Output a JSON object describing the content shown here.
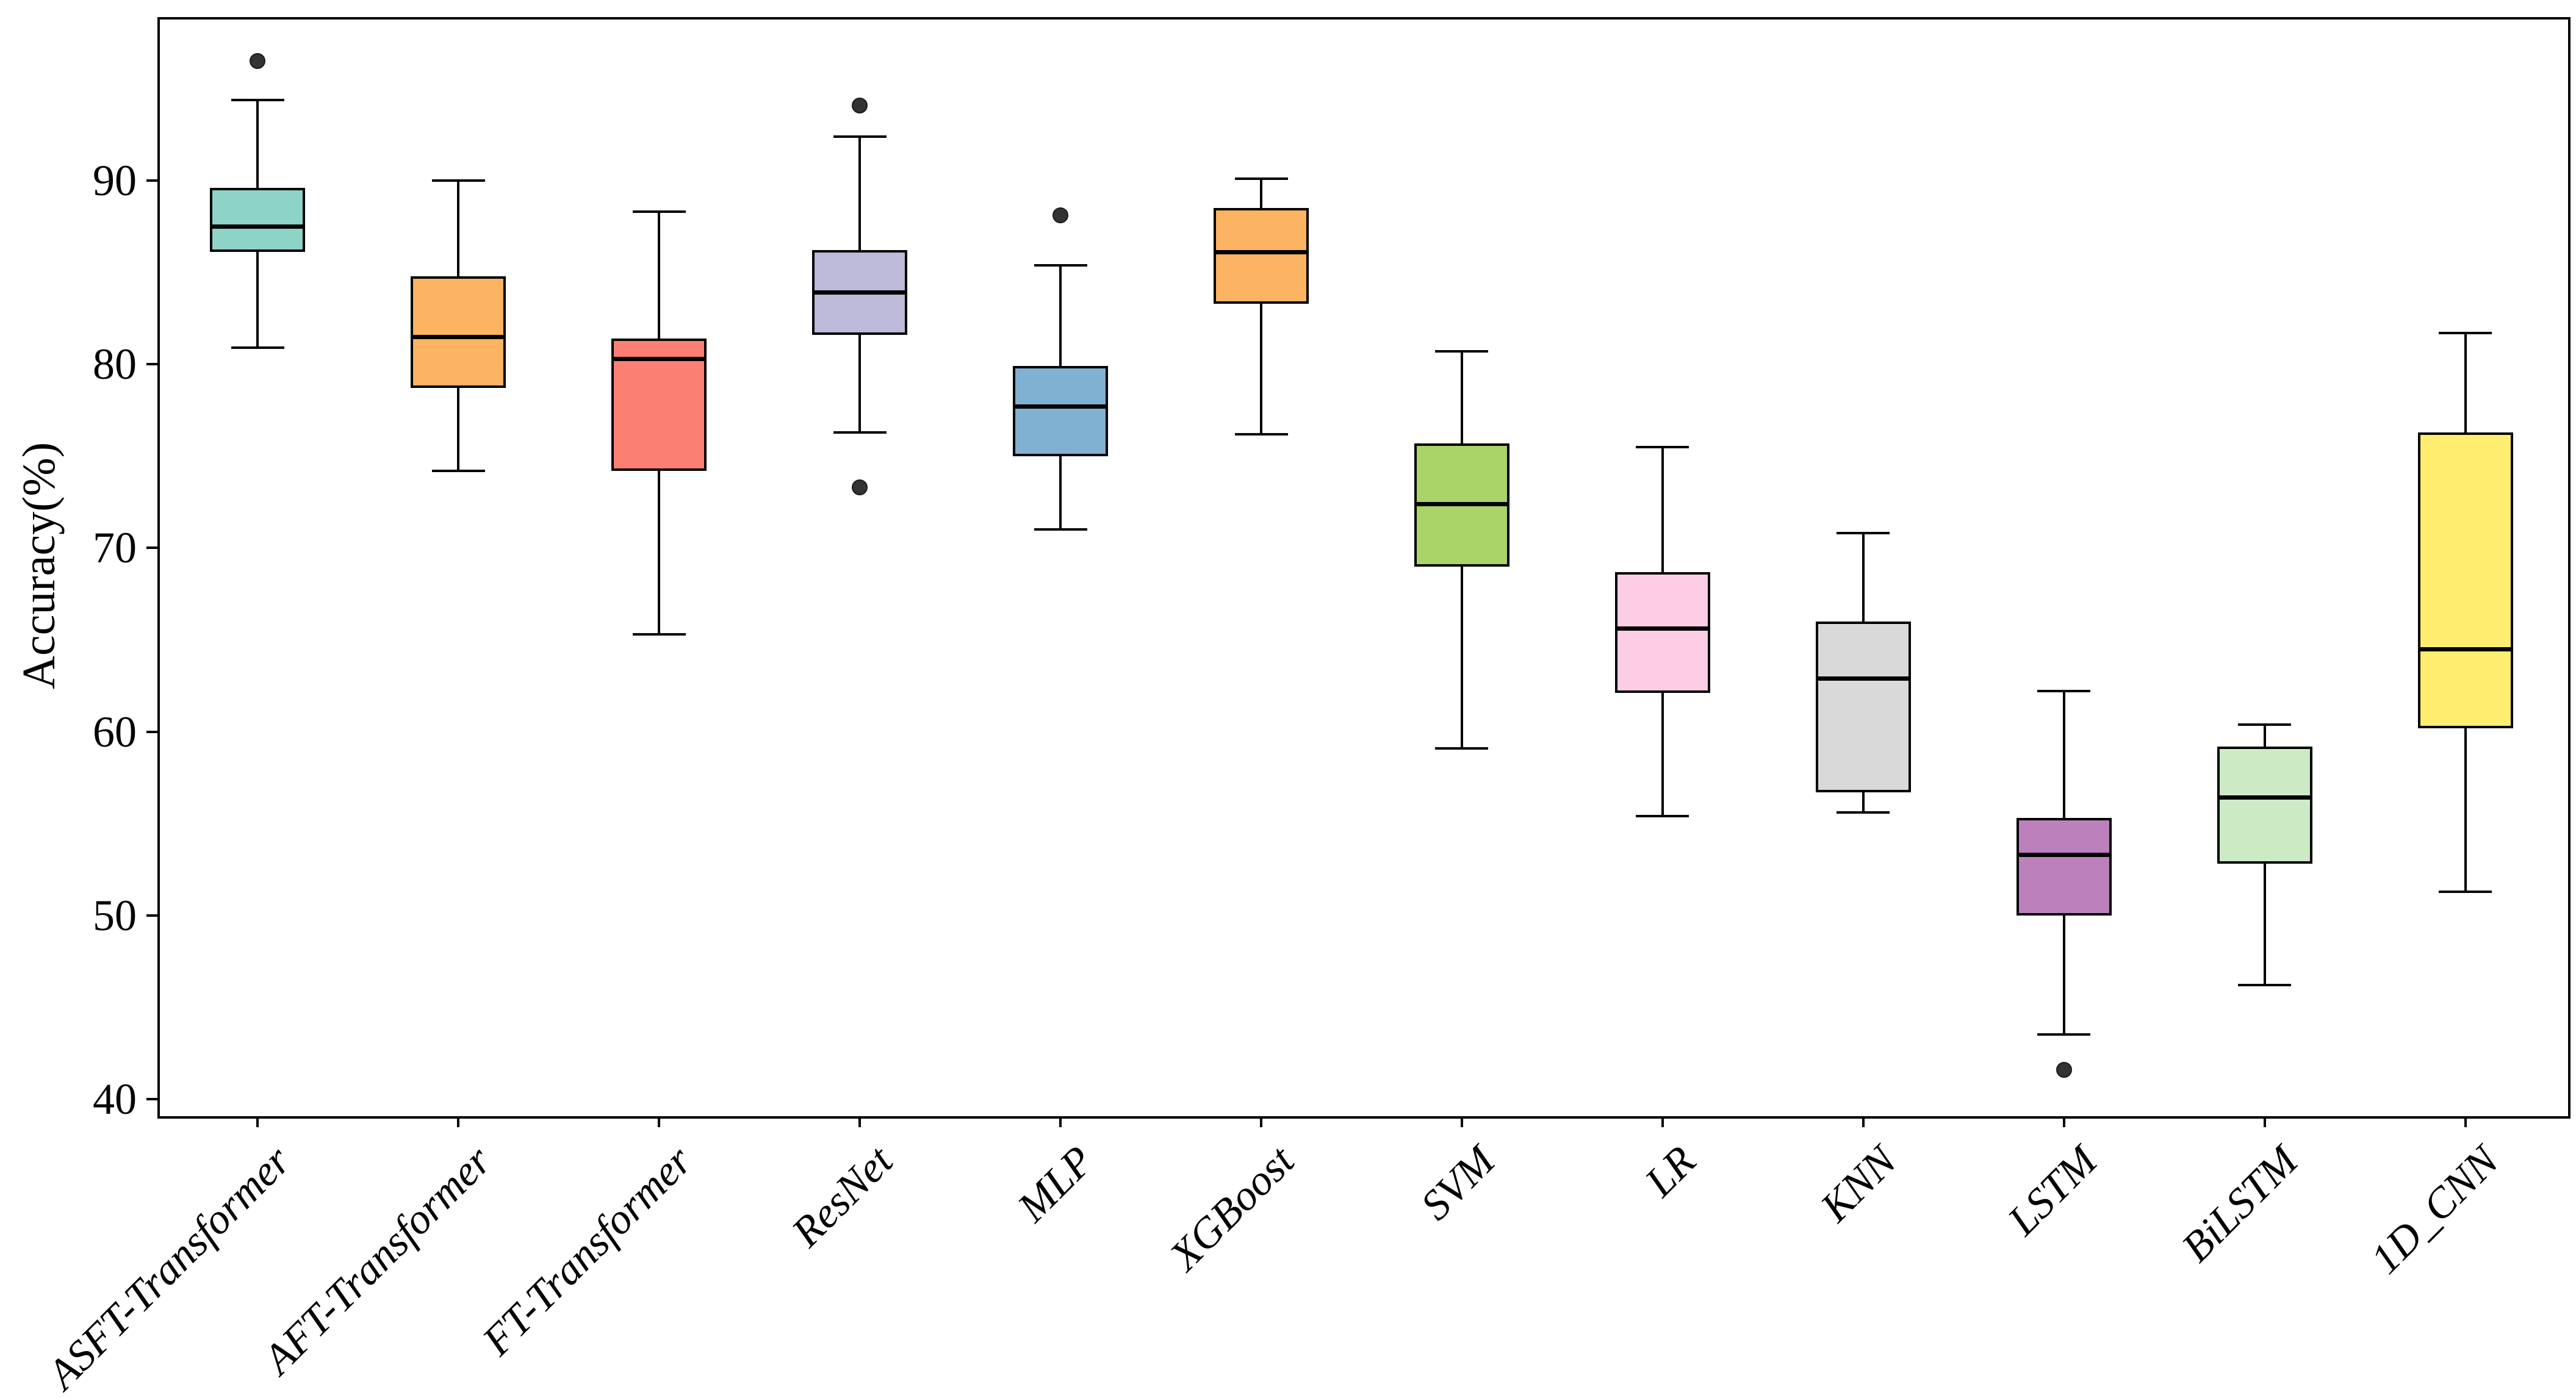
{
  "chart_data": {
    "type": "box",
    "title": "",
    "xlabel": "",
    "ylabel": "Accuracy(%)",
    "yticks": [
      40,
      50,
      60,
      70,
      80,
      90
    ],
    "ylim": [
      39.2,
      98.9
    ],
    "grid": false,
    "legend": null,
    "outlier_color": "#333333",
    "categories": [
      "ASFT-Transformer",
      "AFT-Transformer",
      "FT-Transformer",
      "ResNet",
      "MLP",
      "XGBoost",
      "SVM",
      "LR",
      "KNN",
      "LSTM",
      "BiLSTM",
      "1D_CNN"
    ],
    "series": [
      {
        "name": "ASFT-Transformer",
        "color": "#8dd3c7",
        "whislo": 80.9,
        "q1": 86.1,
        "med": 87.5,
        "q3": 89.6,
        "whishi": 94.4,
        "fliers": [
          96.5
        ]
      },
      {
        "name": "AFT-Transformer",
        "color": "#fdb462",
        "whislo": 74.2,
        "q1": 78.7,
        "med": 81.5,
        "q3": 84.8,
        "whishi": 90.0,
        "fliers": []
      },
      {
        "name": "FT-Transformer",
        "color": "#fb8072",
        "whislo": 65.3,
        "q1": 74.2,
        "med": 80.3,
        "q3": 81.4,
        "whishi": 88.3,
        "fliers": []
      },
      {
        "name": "ResNet",
        "color": "#bebada",
        "whislo": 76.3,
        "q1": 81.6,
        "med": 83.9,
        "q3": 86.2,
        "whishi": 92.4,
        "fliers": [
          94.1,
          73.3
        ]
      },
      {
        "name": "MLP",
        "color": "#80b1d3",
        "whislo": 71.0,
        "q1": 75.0,
        "med": 77.7,
        "q3": 79.9,
        "whishi": 85.4,
        "fliers": [
          88.1
        ]
      },
      {
        "name": "XGBoost",
        "color": "#fdb462",
        "whislo": 76.2,
        "q1": 83.3,
        "med": 86.1,
        "q3": 88.5,
        "whishi": 90.1,
        "fliers": []
      },
      {
        "name": "SVM",
        "color": "#aad467",
        "whislo": 59.1,
        "q1": 69.0,
        "med": 72.4,
        "q3": 75.7,
        "whishi": 80.7,
        "fliers": []
      },
      {
        "name": "LR",
        "color": "#fccde5",
        "whislo": 55.4,
        "q1": 62.1,
        "med": 65.6,
        "q3": 68.7,
        "whishi": 75.5,
        "fliers": []
      },
      {
        "name": "KNN",
        "color": "#d9d9d9",
        "whislo": 55.6,
        "q1": 56.7,
        "med": 62.9,
        "q3": 66.0,
        "whishi": 70.8,
        "fliers": []
      },
      {
        "name": "LSTM",
        "color": "#bc80bd",
        "whislo": 43.5,
        "q1": 50.0,
        "med": 53.3,
        "q3": 55.3,
        "whishi": 62.2,
        "fliers": [
          41.6
        ]
      },
      {
        "name": "BiLSTM",
        "color": "#ccebc5",
        "whislo": 46.2,
        "q1": 52.8,
        "med": 56.4,
        "q3": 59.2,
        "whishi": 60.4,
        "fliers": []
      },
      {
        "name": "1D_CNN",
        "color": "#ffed6f",
        "whislo": 51.3,
        "q1": 60.2,
        "med": 64.5,
        "q3": 76.3,
        "whishi": 81.7,
        "fliers": []
      }
    ]
  },
  "figure": {
    "background": "#ffffff",
    "spine_color": "#000000"
  }
}
